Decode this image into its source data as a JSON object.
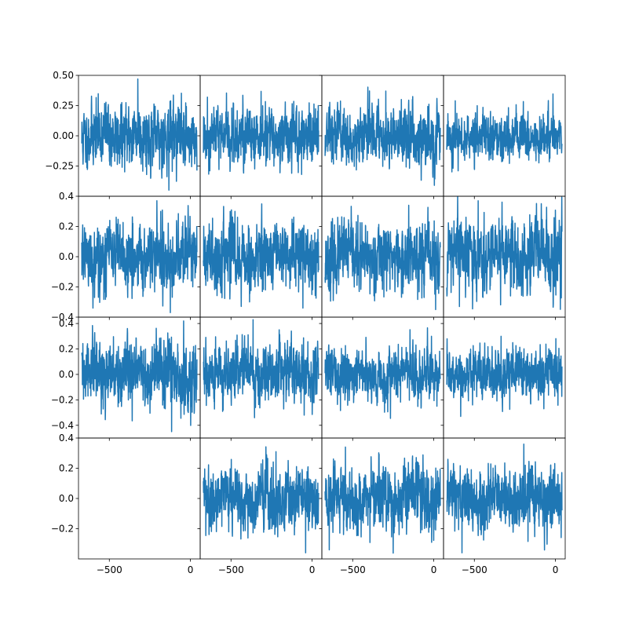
{
  "chart_data": {
    "type": "line",
    "grid": {
      "rows": 4,
      "cols": 4
    },
    "series_color": "#1f77b4",
    "show_grid": false,
    "legend": "none",
    "xlim": [
      -690,
      60
    ],
    "x_ticks": [
      -500,
      0
    ],
    "x_tick_labels": [
      "−500",
      "0"
    ],
    "row_axes": [
      {
        "ylim": [
          -0.5,
          0.5
        ],
        "y_ticks": [
          -0.25,
          0,
          0.25,
          0.5
        ],
        "y_tick_labels": [
          "−0.25",
          "0.00",
          "0.25",
          "0.50"
        ]
      },
      {
        "ylim": [
          -0.4,
          0.4
        ],
        "y_ticks": [
          -0.4,
          -0.2,
          0,
          0.2,
          0.4
        ],
        "y_tick_labels": [
          "−0.4",
          "−0.2",
          "0.0",
          "0.2",
          "0.4"
        ]
      },
      {
        "ylim": [
          -0.5,
          0.45
        ],
        "y_ticks": [
          -0.4,
          -0.2,
          0,
          0.2,
          0.4
        ],
        "y_tick_labels": [
          "−0.4",
          "−0.2",
          "0.0",
          "0.2",
          "0.4"
        ]
      },
      {
        "ylim": [
          -0.4,
          0.4
        ],
        "y_ticks": [
          -0.2,
          0,
          0.2,
          0.4
        ],
        "y_tick_labels": [
          "−0.2",
          "0.0",
          "0.2",
          "0.4"
        ]
      }
    ],
    "x_start": -670,
    "x_end": 40,
    "panels": [
      {
        "row": 0,
        "col": 0,
        "amplitude": 0.12,
        "max": 0.47,
        "min": -0.45,
        "seed": 11
      },
      {
        "row": 0,
        "col": 1,
        "amplitude": 0.11,
        "max": 0.32,
        "min": -0.32,
        "seed": 12
      },
      {
        "row": 0,
        "col": 2,
        "amplitude": 0.11,
        "max": 0.37,
        "min": -0.41,
        "seed": 13
      },
      {
        "row": 0,
        "col": 3,
        "amplitude": 0.09,
        "max": 0.29,
        "min": -0.29,
        "seed": 14
      },
      {
        "row": 1,
        "col": 0,
        "amplitude": 0.1,
        "max": 0.3,
        "min": -0.37,
        "seed": 21
      },
      {
        "row": 1,
        "col": 1,
        "amplitude": 0.1,
        "max": 0.3,
        "min": -0.34,
        "seed": 22
      },
      {
        "row": 1,
        "col": 2,
        "amplitude": 0.1,
        "max": 0.34,
        "min": -0.35,
        "seed": 23
      },
      {
        "row": 1,
        "col": 3,
        "amplitude": 0.11,
        "max": 0.37,
        "min": -0.33,
        "seed": 24
      },
      {
        "row": 2,
        "col": 0,
        "amplitude": 0.12,
        "max": 0.42,
        "min": -0.45,
        "seed": 31
      },
      {
        "row": 2,
        "col": 1,
        "amplitude": 0.11,
        "max": 0.43,
        "min": -0.32,
        "seed": 32
      },
      {
        "row": 2,
        "col": 2,
        "amplitude": 0.09,
        "max": 0.3,
        "min": -0.25,
        "seed": 33
      },
      {
        "row": 2,
        "col": 3,
        "amplitude": 0.09,
        "max": 0.3,
        "min": -0.33,
        "seed": 34
      },
      {
        "row": 3,
        "col": 0,
        "empty": true
      },
      {
        "row": 3,
        "col": 1,
        "amplitude": 0.1,
        "max": 0.31,
        "min": -0.36,
        "seed": 42
      },
      {
        "row": 3,
        "col": 2,
        "amplitude": 0.1,
        "max": 0.34,
        "min": -0.34,
        "seed": 43
      },
      {
        "row": 3,
        "col": 3,
        "amplitude": 0.1,
        "max": 0.36,
        "min": -0.36,
        "seed": 44
      }
    ]
  }
}
